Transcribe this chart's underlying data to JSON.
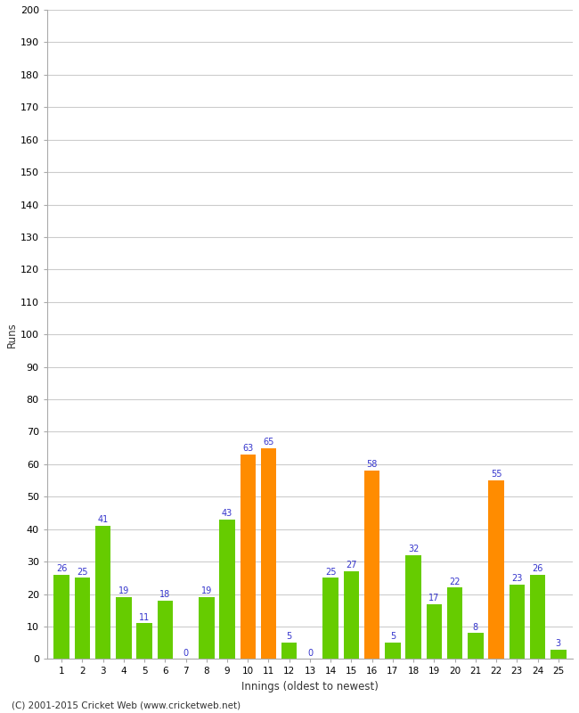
{
  "innings": [
    1,
    2,
    3,
    4,
    5,
    6,
    7,
    8,
    9,
    10,
    11,
    12,
    13,
    14,
    15,
    16,
    17,
    18,
    19,
    20,
    21,
    22,
    23,
    24,
    25
  ],
  "values": [
    26,
    25,
    41,
    19,
    11,
    18,
    0,
    19,
    43,
    63,
    65,
    5,
    0,
    25,
    27,
    58,
    5,
    32,
    17,
    22,
    8,
    55,
    23,
    26,
    3
  ],
  "colors": [
    "#66cc00",
    "#66cc00",
    "#66cc00",
    "#66cc00",
    "#66cc00",
    "#66cc00",
    "#66cc00",
    "#66cc00",
    "#66cc00",
    "#ff8c00",
    "#ff8c00",
    "#66cc00",
    "#66cc00",
    "#66cc00",
    "#66cc00",
    "#ff8c00",
    "#66cc00",
    "#66cc00",
    "#66cc00",
    "#66cc00",
    "#66cc00",
    "#ff8c00",
    "#66cc00",
    "#66cc00",
    "#66cc00"
  ],
  "xlabel": "Innings (oldest to newest)",
  "ylabel": "Runs",
  "ylim": [
    0,
    200
  ],
  "yticks": [
    0,
    10,
    20,
    30,
    40,
    50,
    60,
    70,
    80,
    90,
    100,
    110,
    120,
    130,
    140,
    150,
    160,
    170,
    180,
    190,
    200
  ],
  "label_color": "#3333cc",
  "background_color": "#ffffff",
  "grid_color": "#cccccc",
  "footer": "(C) 2001-2015 Cricket Web (www.cricketweb.net)"
}
